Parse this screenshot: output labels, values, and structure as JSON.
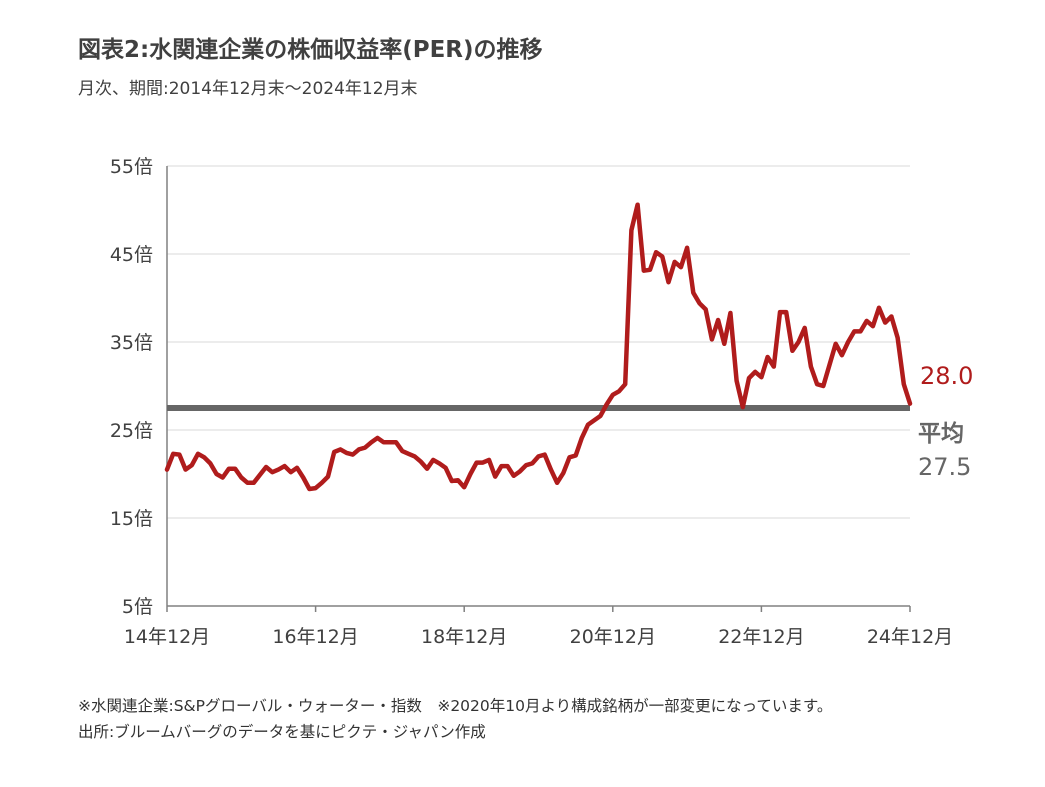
{
  "title": "図表2:水関連企業の株価収益率(PER)の推移",
  "subtitle": "月次、期間:2014年12月末〜2024年12月末",
  "notes": [
    "※水関連企業:S&Pグローバル・ウォーター・指数　※2020年10月より構成銘柄が一部変更になっています。",
    "出所:ブルームバーグのデータを基にピクテ・ジャパン作成"
  ],
  "colors": {
    "series": "#b01c1c",
    "average": "#666666",
    "grid": "#d9d9d9",
    "axis": "#808080"
  },
  "chart_data": {
    "type": "line",
    "title": "図表2:水関連企業の株価収益率(PER)の推移",
    "subtitle": "月次、期間:2014年12月末〜2024年12月末",
    "ylim": [
      5,
      55
    ],
    "y_ticks": [
      5,
      15,
      25,
      35,
      45,
      55
    ],
    "y_tick_labels": [
      "5倍",
      "15倍",
      "25倍",
      "35倍",
      "45倍",
      "55倍"
    ],
    "x_range": [
      "2014-12",
      "2024-12"
    ],
    "x_ticks": [
      "2014-12",
      "2016-12",
      "2018-12",
      "2020-12",
      "2022-12",
      "2024-12"
    ],
    "x_tick_labels": [
      "14年12月",
      "16年12月",
      "18年12月",
      "20年12月",
      "22年12月",
      "24年12月"
    ],
    "grid": true,
    "series": [
      {
        "points": [
          [
            "2014-12",
            20.5
          ],
          [
            "2015-01",
            22.3
          ],
          [
            "2015-02",
            22.2
          ],
          [
            "2015-03",
            20.5
          ],
          [
            "2015-04",
            21.0
          ],
          [
            "2015-05",
            22.3
          ],
          [
            "2015-06",
            21.9
          ],
          [
            "2015-07",
            21.2
          ],
          [
            "2015-08",
            20.0
          ],
          [
            "2015-09",
            19.6
          ],
          [
            "2015-10",
            20.6
          ],
          [
            "2015-11",
            20.6
          ],
          [
            "2015-12",
            19.6
          ],
          [
            "2016-01",
            19.0
          ],
          [
            "2016-02",
            19.0
          ],
          [
            "2016-03",
            19.9
          ],
          [
            "2016-04",
            20.8
          ],
          [
            "2016-05",
            20.2
          ],
          [
            "2016-06",
            20.5
          ],
          [
            "2016-07",
            20.9
          ],
          [
            "2016-08",
            20.2
          ],
          [
            "2016-09",
            20.7
          ],
          [
            "2016-10",
            19.6
          ],
          [
            "2016-11",
            18.3
          ],
          [
            "2016-12",
            18.4
          ],
          [
            "2017-01",
            19.0
          ],
          [
            "2017-02",
            19.7
          ],
          [
            "2017-03",
            22.5
          ],
          [
            "2017-04",
            22.8
          ],
          [
            "2017-05",
            22.4
          ],
          [
            "2017-06",
            22.2
          ],
          [
            "2017-07",
            22.8
          ],
          [
            "2017-08",
            23.0
          ],
          [
            "2017-09",
            23.6
          ],
          [
            "2017-10",
            24.1
          ],
          [
            "2017-11",
            23.6
          ],
          [
            "2017-12",
            23.6
          ],
          [
            "2018-01",
            23.6
          ],
          [
            "2018-02",
            22.6
          ],
          [
            "2018-03",
            22.3
          ],
          [
            "2018-04",
            22.0
          ],
          [
            "2018-05",
            21.4
          ],
          [
            "2018-06",
            20.6
          ],
          [
            "2018-07",
            21.6
          ],
          [
            "2018-08",
            21.2
          ],
          [
            "2018-09",
            20.7
          ],
          [
            "2018-10",
            19.2
          ],
          [
            "2018-11",
            19.3
          ],
          [
            "2018-12",
            18.5
          ],
          [
            "2019-01",
            20.0
          ],
          [
            "2019-02",
            21.3
          ],
          [
            "2019-03",
            21.3
          ],
          [
            "2019-04",
            21.6
          ],
          [
            "2019-05",
            19.7
          ],
          [
            "2019-06",
            20.9
          ],
          [
            "2019-07",
            20.9
          ],
          [
            "2019-08",
            19.8
          ],
          [
            "2019-09",
            20.3
          ],
          [
            "2019-10",
            21.0
          ],
          [
            "2019-11",
            21.2
          ],
          [
            "2019-12",
            22.0
          ],
          [
            "2020-01",
            22.2
          ],
          [
            "2020-02",
            20.5
          ],
          [
            "2020-03",
            19.0
          ],
          [
            "2020-04",
            20.1
          ],
          [
            "2020-05",
            21.9
          ],
          [
            "2020-06",
            22.1
          ],
          [
            "2020-07",
            24.1
          ],
          [
            "2020-08",
            25.6
          ],
          [
            "2020-09",
            26.1
          ],
          [
            "2020-10",
            26.6
          ],
          [
            "2020-11",
            27.9
          ],
          [
            "2020-12",
            29.0
          ],
          [
            "2021-01",
            29.4
          ],
          [
            "2021-02",
            30.2
          ],
          [
            "2021-03",
            47.7
          ],
          [
            "2021-04",
            50.6
          ],
          [
            "2021-05",
            43.1
          ],
          [
            "2021-06",
            43.2
          ],
          [
            "2021-07",
            45.2
          ],
          [
            "2021-08",
            44.7
          ],
          [
            "2021-09",
            41.8
          ],
          [
            "2021-10",
            44.1
          ],
          [
            "2021-11",
            43.5
          ],
          [
            "2021-12",
            45.7
          ],
          [
            "2022-01",
            40.6
          ],
          [
            "2022-02",
            39.4
          ],
          [
            "2022-03",
            38.7
          ],
          [
            "2022-04",
            35.3
          ],
          [
            "2022-05",
            37.5
          ],
          [
            "2022-06",
            34.8
          ],
          [
            "2022-07",
            38.3
          ],
          [
            "2022-08",
            30.6
          ],
          [
            "2022-09",
            27.6
          ],
          [
            "2022-10",
            30.9
          ],
          [
            "2022-11",
            31.6
          ],
          [
            "2022-12",
            31.0
          ],
          [
            "2023-01",
            33.3
          ],
          [
            "2023-02",
            32.2
          ],
          [
            "2023-03",
            38.4
          ],
          [
            "2023-04",
            38.4
          ],
          [
            "2023-05",
            34.0
          ],
          [
            "2023-06",
            35.0
          ],
          [
            "2023-07",
            36.6
          ],
          [
            "2023-08",
            32.2
          ],
          [
            "2023-09",
            30.2
          ],
          [
            "2023-10",
            30.0
          ],
          [
            "2023-11",
            32.4
          ],
          [
            "2023-12",
            34.8
          ],
          [
            "2024-01",
            33.5
          ],
          [
            "2024-02",
            35.0
          ],
          [
            "2024-03",
            36.2
          ],
          [
            "2024-04",
            36.2
          ],
          [
            "2024-05",
            37.4
          ],
          [
            "2024-06",
            36.8
          ],
          [
            "2024-07",
            38.9
          ],
          [
            "2024-08",
            37.2
          ],
          [
            "2024-09",
            37.9
          ],
          [
            "2024-10",
            35.5
          ],
          [
            "2024-11",
            30.2
          ],
          [
            "2024-12",
            28.0
          ]
        ]
      }
    ],
    "average": {
      "label": "平均",
      "value": 27.5,
      "value_label": "27.5"
    },
    "last_value_label": "28.0"
  }
}
